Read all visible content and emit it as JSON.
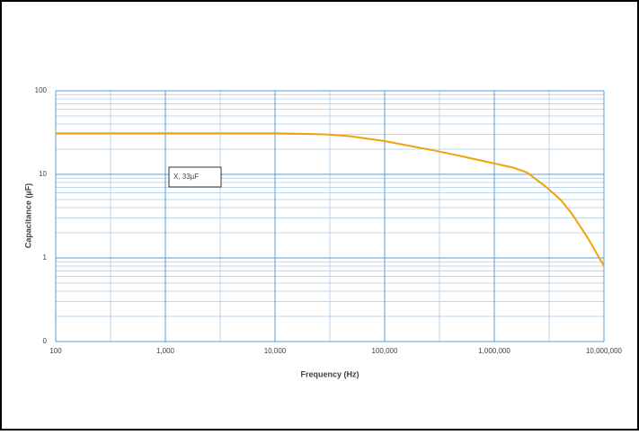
{
  "chart_data": {
    "type": "line",
    "x_label": "Frequency (Hz)",
    "y_label": "Capacitance (µF)",
    "x": [
      100,
      1000,
      10000,
      20000,
      30000,
      50000,
      100000,
      200000,
      300000,
      500000,
      1000000,
      1500000,
      2000000,
      3000000,
      4000000,
      5000000,
      7000000,
      10000000
    ],
    "series": [
      {
        "name": "X, 33µF",
        "color": "#f0a30a",
        "values": [
          31,
          31,
          31,
          30.5,
          30,
          28.5,
          25,
          21,
          19,
          16.5,
          13.5,
          12,
          10.5,
          7,
          5,
          3.5,
          1.8,
          0.8
        ]
      }
    ],
    "xlim": [
      100,
      10000000
    ],
    "ylim": [
      0.1,
      100
    ],
    "xticks": [
      100,
      {
        "value": 1000,
        "label": "1,000"
      },
      {
        "value": 10000,
        "label": "10,000"
      },
      {
        "value": 100000,
        "label": "100,000"
      },
      {
        "value": 1000000,
        "label": "1,000,000"
      },
      {
        "value": 10000000,
        "label": "10,000,000"
      }
    ],
    "yticks": [
      {
        "value": 0.1,
        "label": "0"
      },
      1,
      10,
      100
    ],
    "xscale": "log",
    "yscale": "log",
    "grid": true,
    "minor_grid": true
  }
}
